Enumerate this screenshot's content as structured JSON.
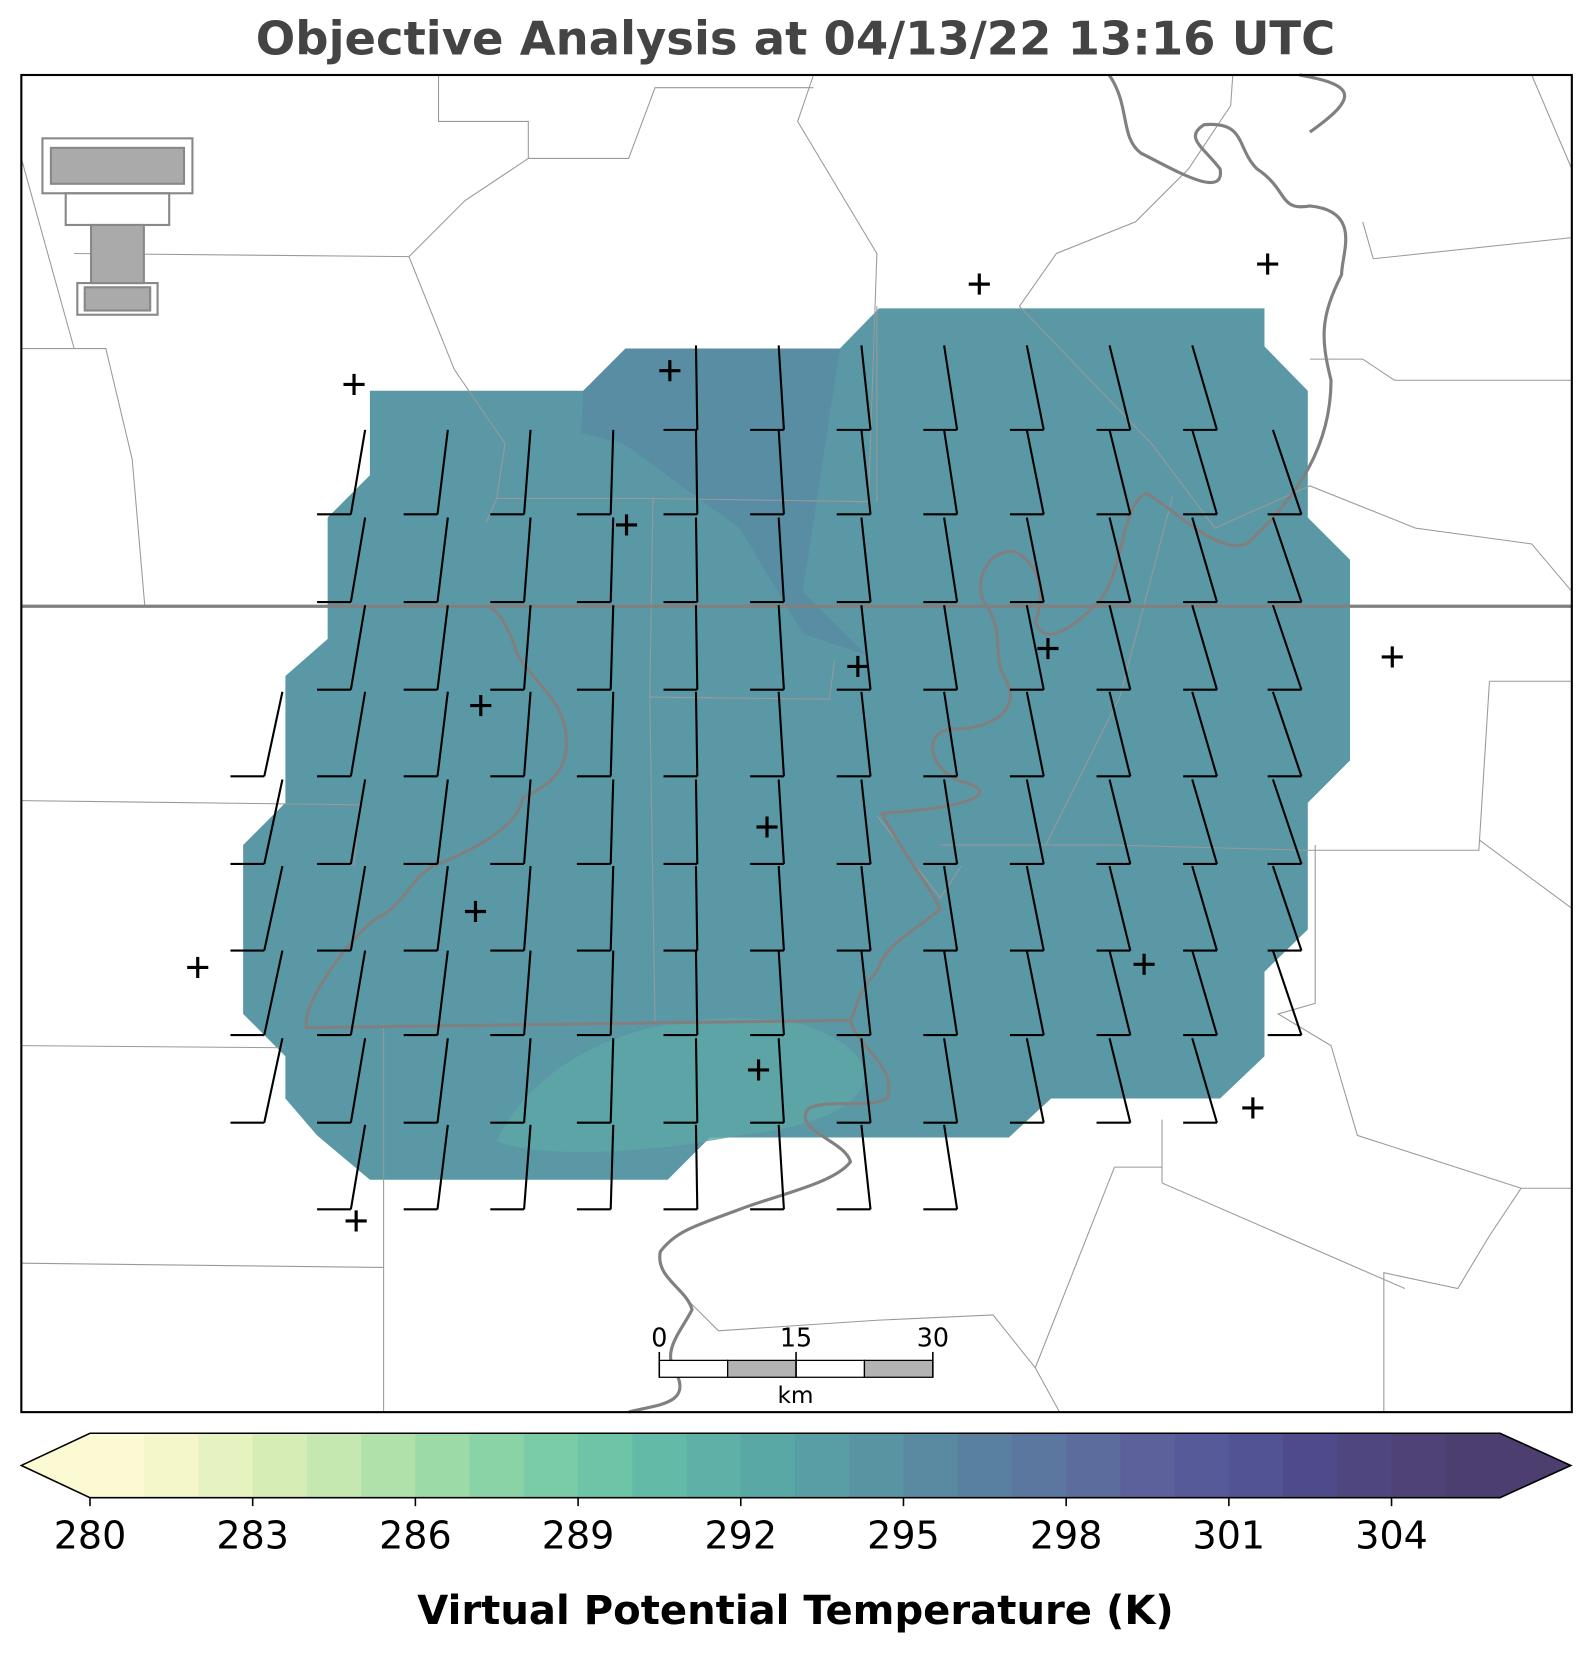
{
  "title": "Objective Analysis at 04/13/22 13:16 UTC",
  "colorbar": {
    "label": "Virtual Potential Temperature (K)",
    "lim": [
      280,
      306
    ],
    "ticks": [
      280,
      283,
      286,
      289,
      292,
      295,
      298,
      301,
      304
    ],
    "colors": [
      "#fcfad3",
      "#f3f7c9",
      "#e6f2bf",
      "#d6edb6",
      "#c4e8b0",
      "#b0e1ab",
      "#9cdaa8",
      "#8ad3a7",
      "#7acca7",
      "#6dc4a7",
      "#63bba7",
      "#5db1a6",
      "#5aa8a5",
      "#599ea4",
      "#5994a2",
      "#598aa1",
      "#5a80a0",
      "#5b769f",
      "#5c6c9d",
      "#5c619b",
      "#575a98",
      "#525394",
      "#4f4b8a",
      "#4f4680",
      "#4e4277",
      "#4c3f6f"
    ]
  },
  "scale_bar": {
    "ticks": [
      0,
      15,
      30
    ],
    "lim": [
      0,
      30
    ],
    "unit": "km"
  }
}
